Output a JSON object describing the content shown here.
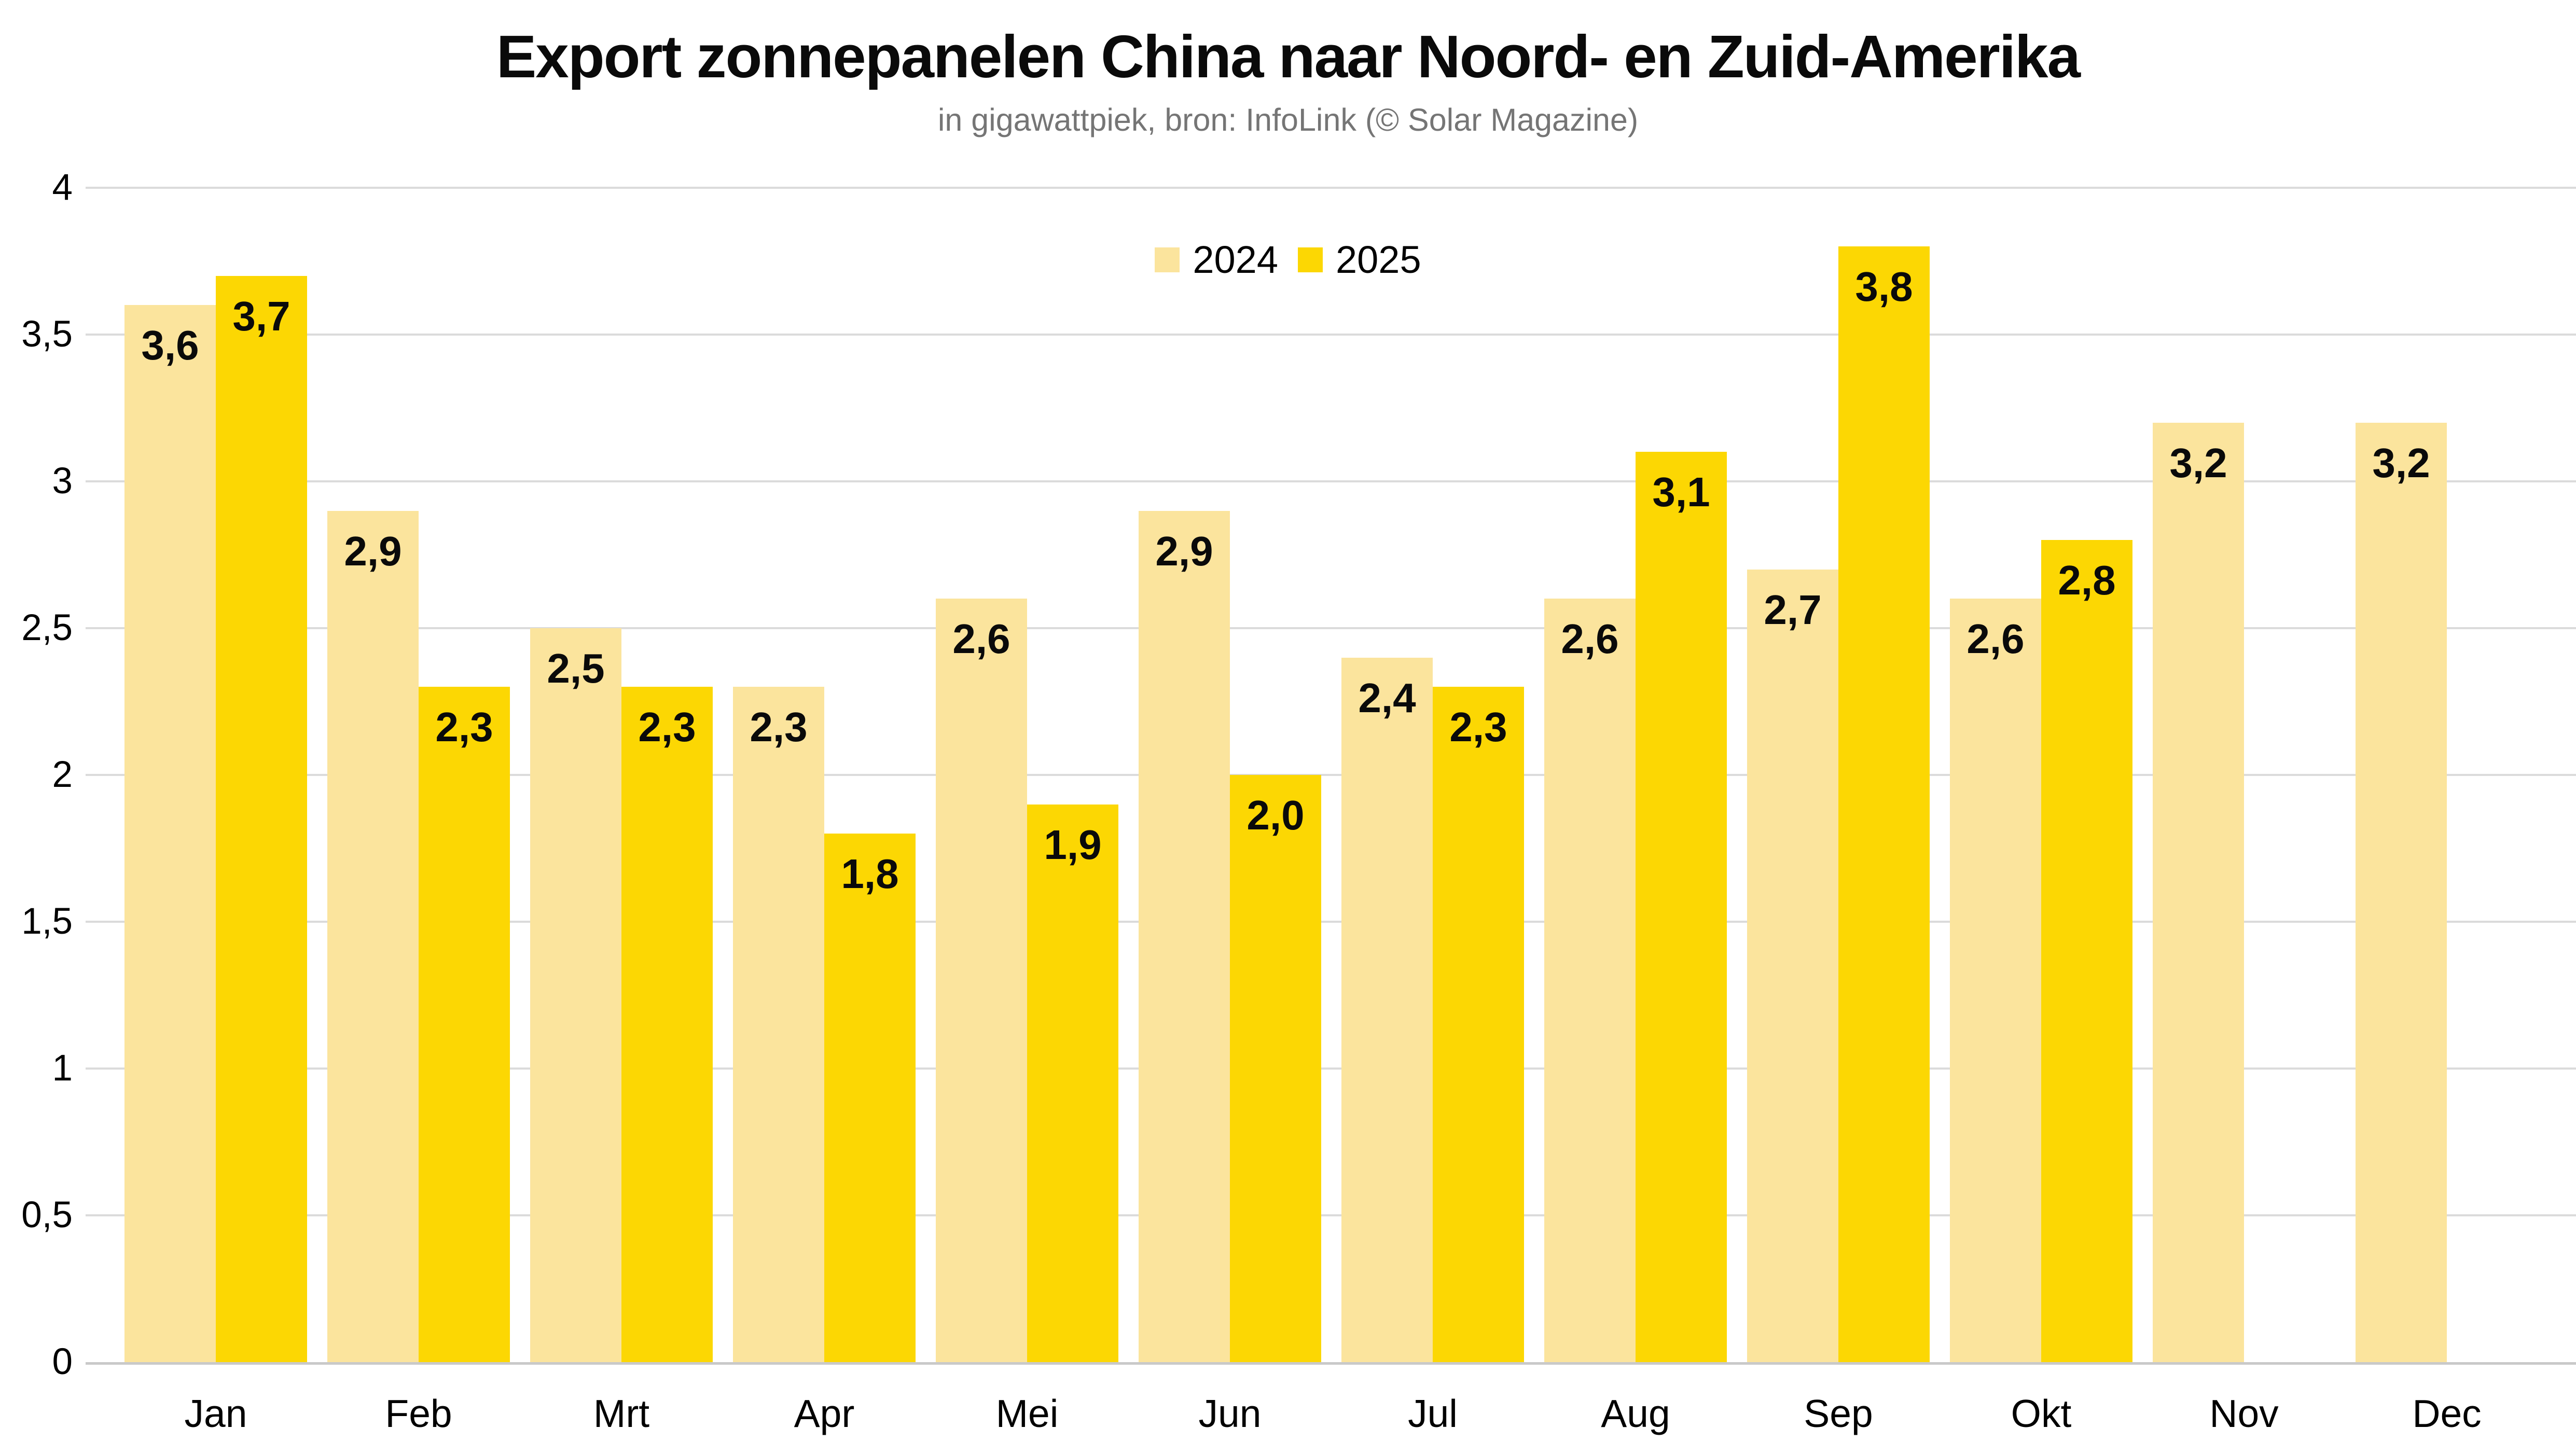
{
  "chart_data": {
    "type": "bar",
    "title": "Export zonnepanelen China naar Noord- en Zuid-Amerika",
    "subtitle": "in gigawattpiek, bron: InfoLink (© Solar Magazine)",
    "categories": [
      "Jan",
      "Feb",
      "Mrt",
      "Apr",
      "Mei",
      "Jun",
      "Jul",
      "Aug",
      "Sep",
      "Okt",
      "Nov",
      "Dec"
    ],
    "series": [
      {
        "name": "2024",
        "color": "#FBE49D",
        "values": [
          3.6,
          2.9,
          2.5,
          2.3,
          2.6,
          2.9,
          2.4,
          2.6,
          2.7,
          2.6,
          3.2,
          3.2
        ]
      },
      {
        "name": "2025",
        "color": "#FCD703",
        "values": [
          3.7,
          2.3,
          2.3,
          1.8,
          1.9,
          2.0,
          2.3,
          3.1,
          3.8,
          2.8,
          null,
          null
        ]
      }
    ],
    "xlabel": "",
    "ylabel": "",
    "ylim": [
      0,
      4
    ],
    "y_ticks": [
      0,
      0.5,
      1,
      1.5,
      2,
      2.5,
      3,
      3.5,
      4
    ],
    "y_tick_labels": [
      "0",
      "0,5",
      "1",
      "1,5",
      "2",
      "2,5",
      "3",
      "3,5",
      "4"
    ],
    "decimal_separator": ",",
    "grid": "horizontal",
    "legend_position": "top-center",
    "value_label_position": "inside-top"
  },
  "style": {
    "background": "#FFFFFF",
    "grid_color": "#DBDBDB",
    "axis_line_color": "#C9C9C9",
    "text_color": "#0A0A0A",
    "subtitle_color": "#757575"
  }
}
